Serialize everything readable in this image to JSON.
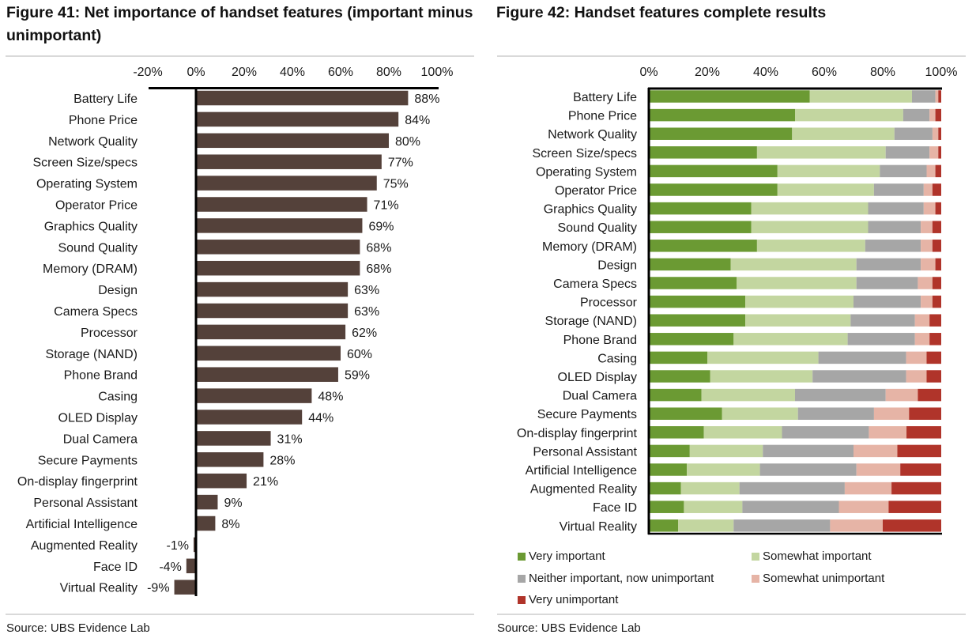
{
  "left": {
    "title": "Figure 41: Net importance of handset features (important minus unimportant)",
    "source": "Source:  UBS Evidence Lab"
  },
  "right": {
    "title": "Figure 42: Handset features complete results",
    "source": "Source:  UBS Evidence Lab"
  },
  "chart_data": [
    {
      "type": "bar",
      "orientation": "horizontal",
      "title": "Figure 41: Net importance of handset features (important minus unimportant)",
      "xlim": [
        -20,
        100
      ],
      "tick_labels": [
        "-20%",
        "0%",
        "20%",
        "40%",
        "60%",
        "80%",
        "100%"
      ],
      "tick_values": [
        -20,
        0,
        20,
        40,
        60,
        80,
        100
      ],
      "categories": [
        "Battery Life",
        "Phone Price",
        "Network Quality",
        "Screen Size/specs",
        "Operating System",
        "Operator Price",
        "Graphics Quality",
        "Sound Quality",
        "Memory (DRAM)",
        "Design",
        "Camera Specs",
        "Processor",
        "Storage (NAND)",
        "Phone Brand",
        "Casing",
        "OLED Display",
        "Dual Camera",
        "Secure Payments",
        "On-display fingerprint",
        "Personal Assistant",
        "Artificial Intelligence",
        "Augmented Reality",
        "Face ID",
        "Virtual Reality"
      ],
      "values": [
        88,
        84,
        80,
        77,
        75,
        71,
        69,
        68,
        68,
        63,
        63,
        62,
        60,
        59,
        48,
        44,
        31,
        28,
        21,
        9,
        8,
        -1,
        -4,
        -9
      ],
      "value_labels": [
        "88%",
        "84%",
        "80%",
        "77%",
        "75%",
        "71%",
        "69%",
        "68%",
        "68%",
        "63%",
        "63%",
        "62%",
        "60%",
        "59%",
        "48%",
        "44%",
        "31%",
        "28%",
        "21%",
        "9%",
        "8%",
        "-1%",
        "-4%",
        "-9%"
      ],
      "bar_color": "#54413a",
      "grid": false
    },
    {
      "type": "bar",
      "orientation": "horizontal",
      "stacked": true,
      "title": "Figure 42: Handset features complete results",
      "xlim": [
        0,
        100
      ],
      "tick_labels": [
        "0%",
        "20%",
        "40%",
        "60%",
        "80%",
        "100%"
      ],
      "tick_values": [
        0,
        20,
        40,
        60,
        80,
        100
      ],
      "categories": [
        "Battery Life",
        "Phone Price",
        "Network Quality",
        "Screen Size/specs",
        "Operating System",
        "Operator Price",
        "Graphics Quality",
        "Sound Quality",
        "Memory (DRAM)",
        "Design",
        "Camera Specs",
        "Processor",
        "Storage (NAND)",
        "Phone Brand",
        "Casing",
        "OLED Display",
        "Dual Camera",
        "Secure Payments",
        "On-display fingerprint",
        "Personal Assistant",
        "Artificial Intelligence",
        "Augmented Reality",
        "Face ID",
        "Virtual Reality"
      ],
      "legend_position": "bottom",
      "grid": false,
      "series": [
        {
          "name": "Very important",
          "color": "#6b9a33",
          "values": [
            55,
            50,
            49,
            37,
            44,
            44,
            35,
            35,
            37,
            28,
            30,
            33,
            33,
            29,
            20,
            21,
            18,
            25,
            19,
            14,
            13,
            11,
            12,
            10
          ]
        },
        {
          "name": "Somewhat important",
          "color": "#c3d6a0",
          "values": [
            35,
            37,
            35,
            44,
            35,
            33,
            40,
            40,
            37,
            43,
            41,
            37,
            36,
            39,
            38,
            35,
            32,
            26,
            27,
            25,
            25,
            20,
            20,
            19
          ]
        },
        {
          "name": "Neither important, now unimportant",
          "color": "#a6a6a6",
          "values": [
            8,
            9,
            13,
            15,
            16,
            17,
            19,
            18,
            19,
            22,
            21,
            23,
            22,
            23,
            30,
            32,
            31,
            26,
            30,
            31,
            33,
            36,
            33,
            33
          ]
        },
        {
          "name": "Somewhat unimportant",
          "color": "#e6b4a6",
          "values": [
            1,
            2,
            2,
            3,
            3,
            3,
            4,
            4,
            4,
            5,
            5,
            4,
            5,
            5,
            7,
            7,
            11,
            12,
            13,
            15,
            15,
            16,
            17,
            18
          ]
        },
        {
          "name": "Very unimportant",
          "color": "#b0342a",
          "values": [
            1,
            2,
            1,
            1,
            2,
            3,
            2,
            3,
            3,
            2,
            3,
            3,
            4,
            4,
            5,
            5,
            8,
            11,
            12,
            15,
            14,
            17,
            18,
            20
          ]
        }
      ]
    }
  ]
}
